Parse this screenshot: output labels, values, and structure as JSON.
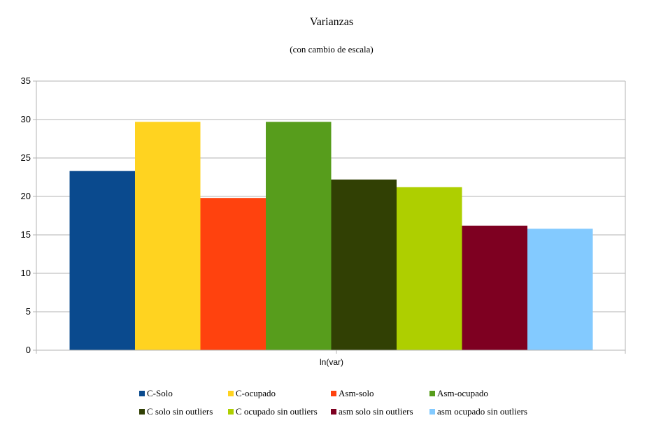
{
  "chart_data": {
    "type": "bar",
    "title": "Varianzas",
    "subtitle": "(con cambio de escala)",
    "xlabel": "ln(var)",
    "ylabel": "",
    "ylim": [
      0,
      35
    ],
    "yticks": [
      0,
      5,
      10,
      15,
      20,
      25,
      30,
      35
    ],
    "grid": true,
    "legend_position": "bottom",
    "categories": [
      "ln(var)"
    ],
    "series": [
      {
        "name": "C-Solo",
        "values": [
          23.3
        ],
        "color": "#0a4a8e"
      },
      {
        "name": "C-ocupado",
        "values": [
          29.7
        ],
        "color": "#ffd320"
      },
      {
        "name": "Asm-solo",
        "values": [
          19.8
        ],
        "color": "#ff420e"
      },
      {
        "name": "Asm-ocupado",
        "values": [
          29.7
        ],
        "color": "#579d1c"
      },
      {
        "name": "C  solo sin outliers",
        "values": [
          22.2
        ],
        "color": "#314004"
      },
      {
        "name": "C ocupado sin outliers",
        "values": [
          21.2
        ],
        "color": "#aecf00"
      },
      {
        "name": "asm solo sin outliers",
        "values": [
          16.2
        ],
        "color": "#7e0021"
      },
      {
        "name": "asm ocupado sin outliers",
        "values": [
          15.8
        ],
        "color": "#83caff"
      }
    ]
  }
}
